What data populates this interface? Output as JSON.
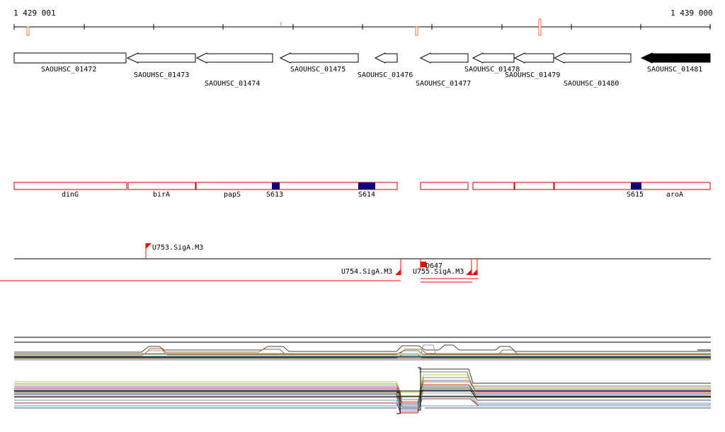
{
  "ruler": {
    "start_label": "1 429 001",
    "end_label": "1 439 000"
  },
  "genes": [
    {
      "id": "SAOUHSC_01472"
    },
    {
      "id": "SAOUHSC_01473"
    },
    {
      "id": "SAOUHSC_01474"
    },
    {
      "id": "SAOUHSC_01475"
    },
    {
      "id": "SAOUHSC_01476"
    },
    {
      "id": "SAOUHSC_01477"
    },
    {
      "id": "SAOUHSC_01478"
    },
    {
      "id": "SAOUHSC_01479"
    },
    {
      "id": "SAOUHSC_01480"
    },
    {
      "id": "SAOUHSC_01481"
    }
  ],
  "annotations": {
    "gene_names": [
      "dinG",
      "birA",
      "papS",
      "aroA"
    ],
    "features": [
      "S613",
      "S614",
      "S615"
    ],
    "feature_color": "#000080",
    "box_color": "#cc0000"
  },
  "promoters": {
    "labels": [
      "U753.SigA.M3",
      "U754.SigA.M3",
      "U755.SigA.M3",
      "D647"
    ],
    "color": "#ff0000"
  }
}
